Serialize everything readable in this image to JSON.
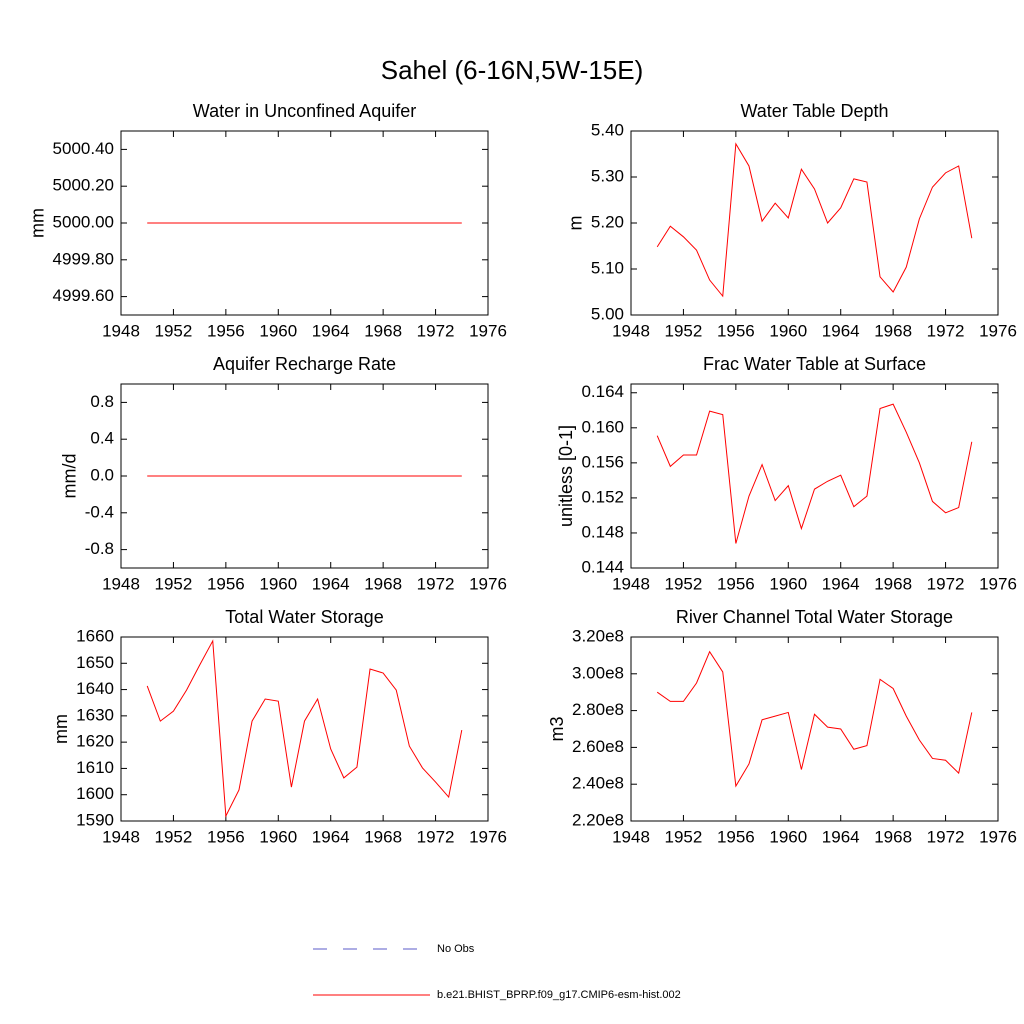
{
  "title": "Sahel (6-16N,5W-15E)",
  "legend": [
    {
      "name": "No Obs",
      "color": "#5b5bc8",
      "dashed": true
    },
    {
      "name": "b.e21.BHIST_BPRP.f09_g17.CMIP6-esm-hist.002",
      "color": "#ff0000",
      "dashed": false
    }
  ],
  "chart_data": [
    {
      "type": "line",
      "title": "Water in Unconfined Aquifer",
      "y_label": "mm",
      "x": [
        1950,
        1951,
        1952,
        1953,
        1954,
        1955,
        1956,
        1957,
        1958,
        1959,
        1960,
        1961,
        1962,
        1963,
        1964,
        1965,
        1966,
        1967,
        1968,
        1969,
        1970,
        1971,
        1972,
        1973,
        1974
      ],
      "xlim": [
        1948,
        1976
      ],
      "xticks": [
        1948,
        1952,
        1956,
        1960,
        1964,
        1968,
        1972,
        1976
      ],
      "ylim": [
        4999.5,
        5000.5
      ],
      "yticks": [
        {
          "value": 4999.6,
          "label": "4999.60"
        },
        {
          "value": 4999.8,
          "label": "4999.80"
        },
        {
          "value": 5000,
          "label": "5000.00"
        },
        {
          "value": 5000.2,
          "label": "5000.20"
        },
        {
          "value": 5000.4,
          "label": "5000.40"
        }
      ],
      "color": "#ff0000",
      "values": [
        5000,
        5000,
        5000,
        5000,
        5000,
        5000,
        5000,
        5000,
        5000,
        5000,
        5000,
        5000,
        5000,
        5000,
        5000,
        5000,
        5000,
        5000,
        5000,
        5000,
        5000,
        5000,
        5000,
        5000,
        5000
      ]
    },
    {
      "type": "line",
      "title": "Water Table Depth",
      "y_label": "m",
      "x": [
        1950,
        1951,
        1952,
        1953,
        1954,
        1955,
        1956,
        1957,
        1958,
        1959,
        1960,
        1961,
        1962,
        1963,
        1964,
        1965,
        1966,
        1967,
        1968,
        1969,
        1970,
        1971,
        1972,
        1973,
        1974
      ],
      "xlim": [
        1948,
        1976
      ],
      "xticks": [
        1948,
        1952,
        1956,
        1960,
        1964,
        1968,
        1972,
        1976
      ],
      "ylim": [
        5.0,
        5.4
      ],
      "yticks": [
        {
          "value": 5.0,
          "label": "5.00"
        },
        {
          "value": 5.1,
          "label": "5.10"
        },
        {
          "value": 5.2,
          "label": "5.20"
        },
        {
          "value": 5.3,
          "label": "5.30"
        },
        {
          "value": 5.4,
          "label": "5.40"
        }
      ],
      "color": "#ff0000",
      "values": [
        5.148,
        5.193,
        5.17,
        5.141,
        5.076,
        5.041,
        5.372,
        5.324,
        5.204,
        5.243,
        5.211,
        5.317,
        5.274,
        5.2,
        5.233,
        5.296,
        5.289,
        5.083,
        5.05,
        5.104,
        5.209,
        5.278,
        5.309,
        5.324,
        5.167
      ]
    },
    {
      "type": "line",
      "title": "Aquifer Recharge Rate",
      "y_label": "mm/d",
      "x": [
        1950,
        1951,
        1952,
        1953,
        1954,
        1955,
        1956,
        1957,
        1958,
        1959,
        1960,
        1961,
        1962,
        1963,
        1964,
        1965,
        1966,
        1967,
        1968,
        1969,
        1970,
        1971,
        1972,
        1973,
        1974
      ],
      "xlim": [
        1948,
        1976
      ],
      "xticks": [
        1948,
        1952,
        1956,
        1960,
        1964,
        1968,
        1972,
        1976
      ],
      "ylim": [
        -1,
        1
      ],
      "yticks": [
        -0.8,
        -0.4,
        {
          "value": 0,
          "label": "0.0"
        },
        0.4,
        0.8
      ],
      "color": "#ff0000",
      "values": [
        0,
        0,
        0,
        0,
        0,
        0,
        0,
        0,
        0,
        0,
        0,
        0,
        0,
        0,
        0,
        0,
        0,
        0,
        0,
        0,
        0,
        0,
        0,
        0,
        0
      ]
    },
    {
      "type": "line",
      "title": "Frac Water Table at Surface",
      "y_label": "unitless [0-1]",
      "x": [
        1950,
        1951,
        1952,
        1953,
        1954,
        1955,
        1956,
        1957,
        1958,
        1959,
        1960,
        1961,
        1962,
        1963,
        1964,
        1965,
        1966,
        1967,
        1968,
        1969,
        1970,
        1971,
        1972,
        1973,
        1974
      ],
      "xlim": [
        1948,
        1976
      ],
      "xticks": [
        1948,
        1952,
        1956,
        1960,
        1964,
        1968,
        1972,
        1976
      ],
      "ylim": [
        0.144,
        0.165
      ],
      "yticks": [
        0.144,
        {
          "value": 0.148,
          "label": "0.148"
        },
        0.152,
        0.156,
        {
          "value": 0.16,
          "label": "0.160"
        },
        0.164
      ],
      "color": "#ff0000",
      "values": [
        0.1591,
        0.1556,
        0.1569,
        0.1569,
        0.1619,
        0.1615,
        0.1468,
        0.1522,
        0.1558,
        0.1517,
        0.1534,
        0.1485,
        0.153,
        0.1539,
        0.1546,
        0.151,
        0.1522,
        0.1622,
        0.1627,
        0.1595,
        0.156,
        0.1516,
        0.1503,
        0.1509,
        0.1584
      ]
    },
    {
      "type": "line",
      "title": "Total Water Storage",
      "y_label": "mm",
      "x": [
        1950,
        1951,
        1952,
        1953,
        1954,
        1955,
        1956,
        1957,
        1958,
        1959,
        1960,
        1961,
        1962,
        1963,
        1964,
        1965,
        1966,
        1967,
        1968,
        1969,
        1970,
        1971,
        1972,
        1973,
        1974
      ],
      "xlim": [
        1948,
        1976
      ],
      "xticks": [
        1948,
        1952,
        1956,
        1960,
        1964,
        1968,
        1972,
        1976
      ],
      "ylim": [
        1590,
        1660
      ],
      "yticks": [
        1590,
        1600,
        1610,
        1620,
        1630,
        1640,
        1650,
        1660
      ],
      "color": "#ff0000",
      "values": [
        1641.4,
        1628.0,
        1631.8,
        1639.8,
        1649.3,
        1658.5,
        1591.9,
        1601.8,
        1628.0,
        1636.4,
        1635.6,
        1602.9,
        1628.0,
        1636.4,
        1617.4,
        1606.4,
        1610.5,
        1647.8,
        1646.3,
        1639.8,
        1618.5,
        1610.2,
        1604.8,
        1599.1,
        1624.6
      ]
    },
    {
      "type": "line",
      "title": "River Channel Total Water Storage",
      "y_label": "m3",
      "x": [
        1950,
        1951,
        1952,
        1953,
        1954,
        1955,
        1956,
        1957,
        1958,
        1959,
        1960,
        1961,
        1962,
        1963,
        1964,
        1965,
        1966,
        1967,
        1968,
        1969,
        1970,
        1971,
        1972,
        1973,
        1974
      ],
      "xlim": [
        1948,
        1976
      ],
      "xticks": [
        1948,
        1952,
        1956,
        1960,
        1964,
        1968,
        1972,
        1976
      ],
      "ylim": [
        220000000,
        320000000
      ],
      "yticks": [
        {
          "value": 220000000,
          "label": "2.20e8"
        },
        {
          "value": 240000000,
          "label": "2.40e8"
        },
        {
          "value": 260000000,
          "label": "2.60e8"
        },
        {
          "value": 280000000,
          "label": "2.80e8"
        },
        {
          "value": 300000000,
          "label": "3.00e8"
        },
        {
          "value": 320000000,
          "label": "3.20e8"
        }
      ],
      "color": "#ff0000",
      "values": [
        290000000,
        285000000,
        285000000,
        295000000,
        312000000,
        301000000,
        239000000,
        251000000,
        275000000,
        277000000,
        279000000,
        248000000,
        278000000,
        271000000,
        270000000,
        259000000,
        261000000,
        297000000,
        292000000,
        277000000,
        264000000,
        254000000,
        253000000,
        246000000,
        279000000
      ]
    }
  ]
}
